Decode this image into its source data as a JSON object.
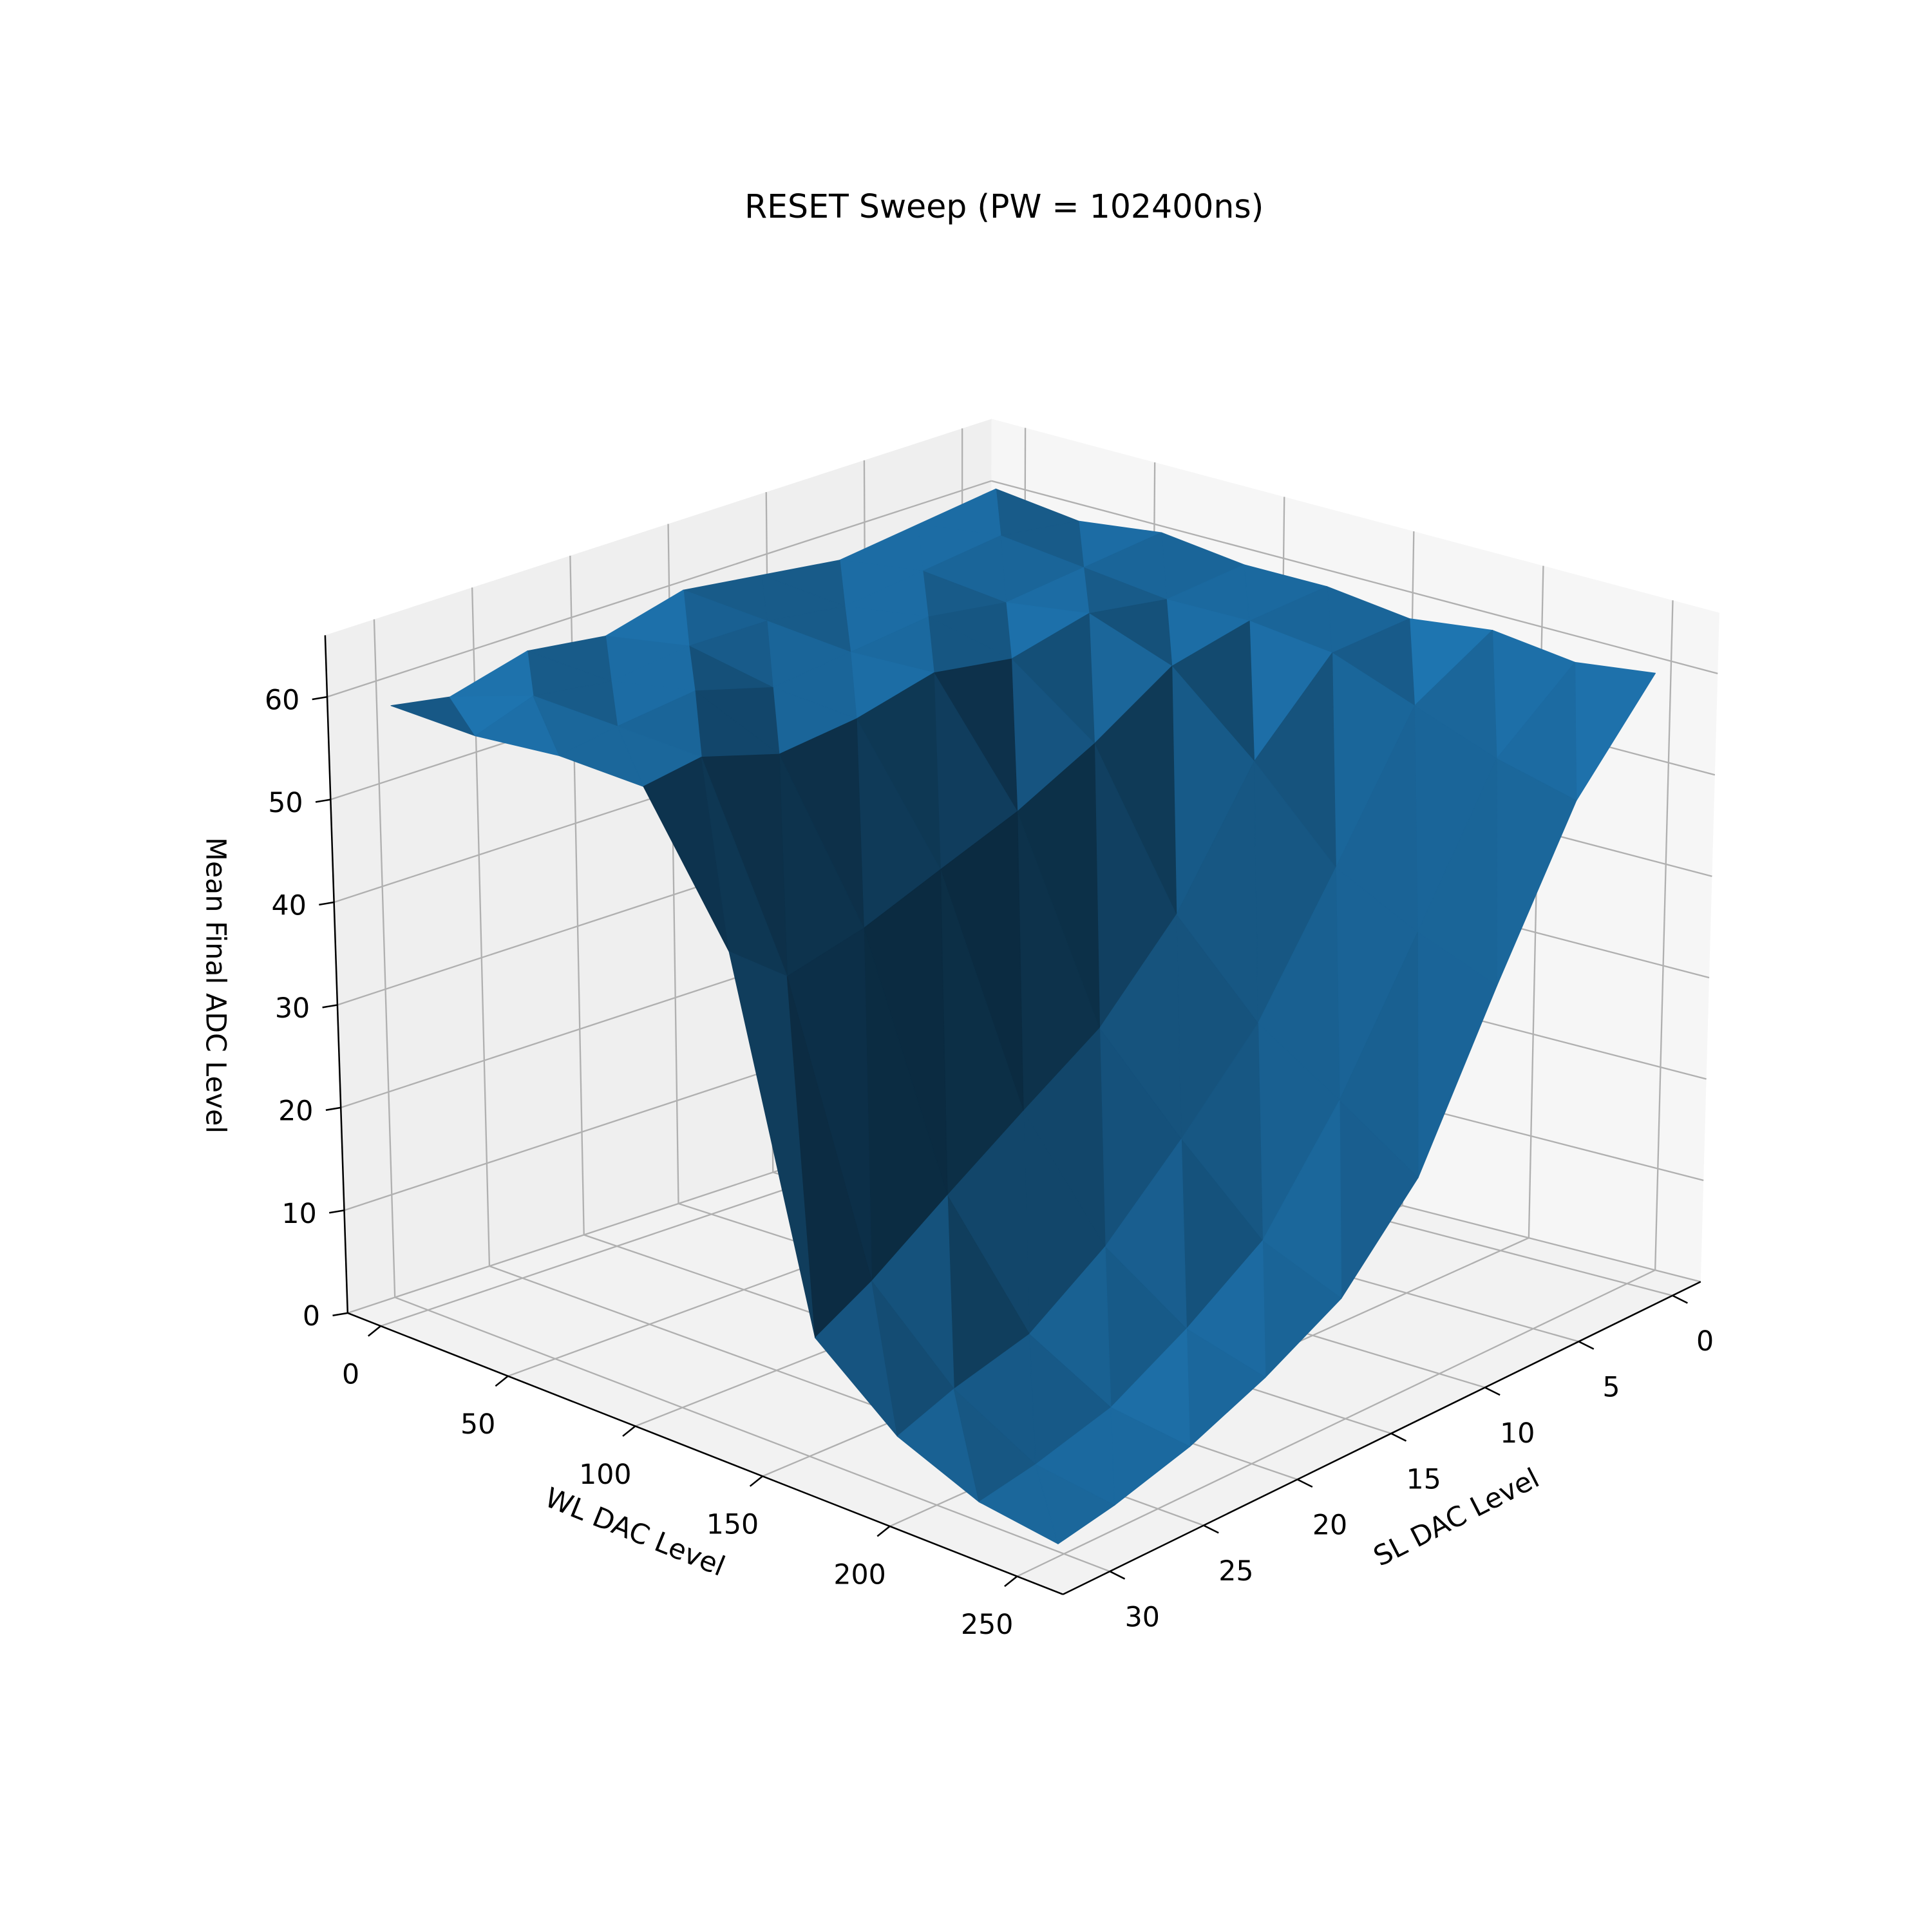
{
  "chart_data": {
    "type": "surface",
    "title": "RESET Sweep (PW = 102400ns)",
    "xlabel": "WL DAC Level",
    "ylabel": "SL DAC Level",
    "zlabel": "Mean Final ADC Level",
    "color": "#1f77b4",
    "x": [
      0,
      32,
      64,
      96,
      128,
      160,
      192,
      224,
      255
    ],
    "y": [
      0,
      4,
      8,
      12,
      16,
      20,
      24,
      28,
      31
    ],
    "z": [
      [
        61,
        60,
        59,
        60,
        61,
        59,
        60,
        58,
        59
      ],
      [
        60,
        61,
        60,
        59,
        60,
        60,
        59,
        60,
        58
      ],
      [
        61,
        60,
        59,
        60,
        59,
        58,
        60,
        59,
        58
      ],
      [
        60,
        59,
        60,
        58,
        59,
        57,
        56,
        58,
        57
      ],
      [
        60,
        59,
        57,
        52,
        48,
        45,
        42,
        40,
        44
      ],
      [
        59,
        58,
        50,
        38,
        30,
        25,
        20,
        15,
        12
      ],
      [
        60,
        55,
        42,
        30,
        22,
        15,
        10,
        8,
        6
      ],
      [
        59,
        52,
        38,
        25,
        15,
        10,
        6,
        4,
        3
      ],
      [
        60,
        50,
        35,
        20,
        12,
        8,
        5,
        3,
        2
      ]
    ],
    "xlim": [
      -13,
      268
    ],
    "ylim": [
      -1.5,
      32.5
    ],
    "zlim": [
      0,
      66
    ],
    "xticks": [
      0,
      50,
      100,
      150,
      200,
      250
    ],
    "yticks": [
      0,
      5,
      10,
      15,
      20,
      25,
      30
    ],
    "zticks": [
      0,
      10,
      20,
      30,
      40,
      50,
      60
    ],
    "grid": true
  }
}
